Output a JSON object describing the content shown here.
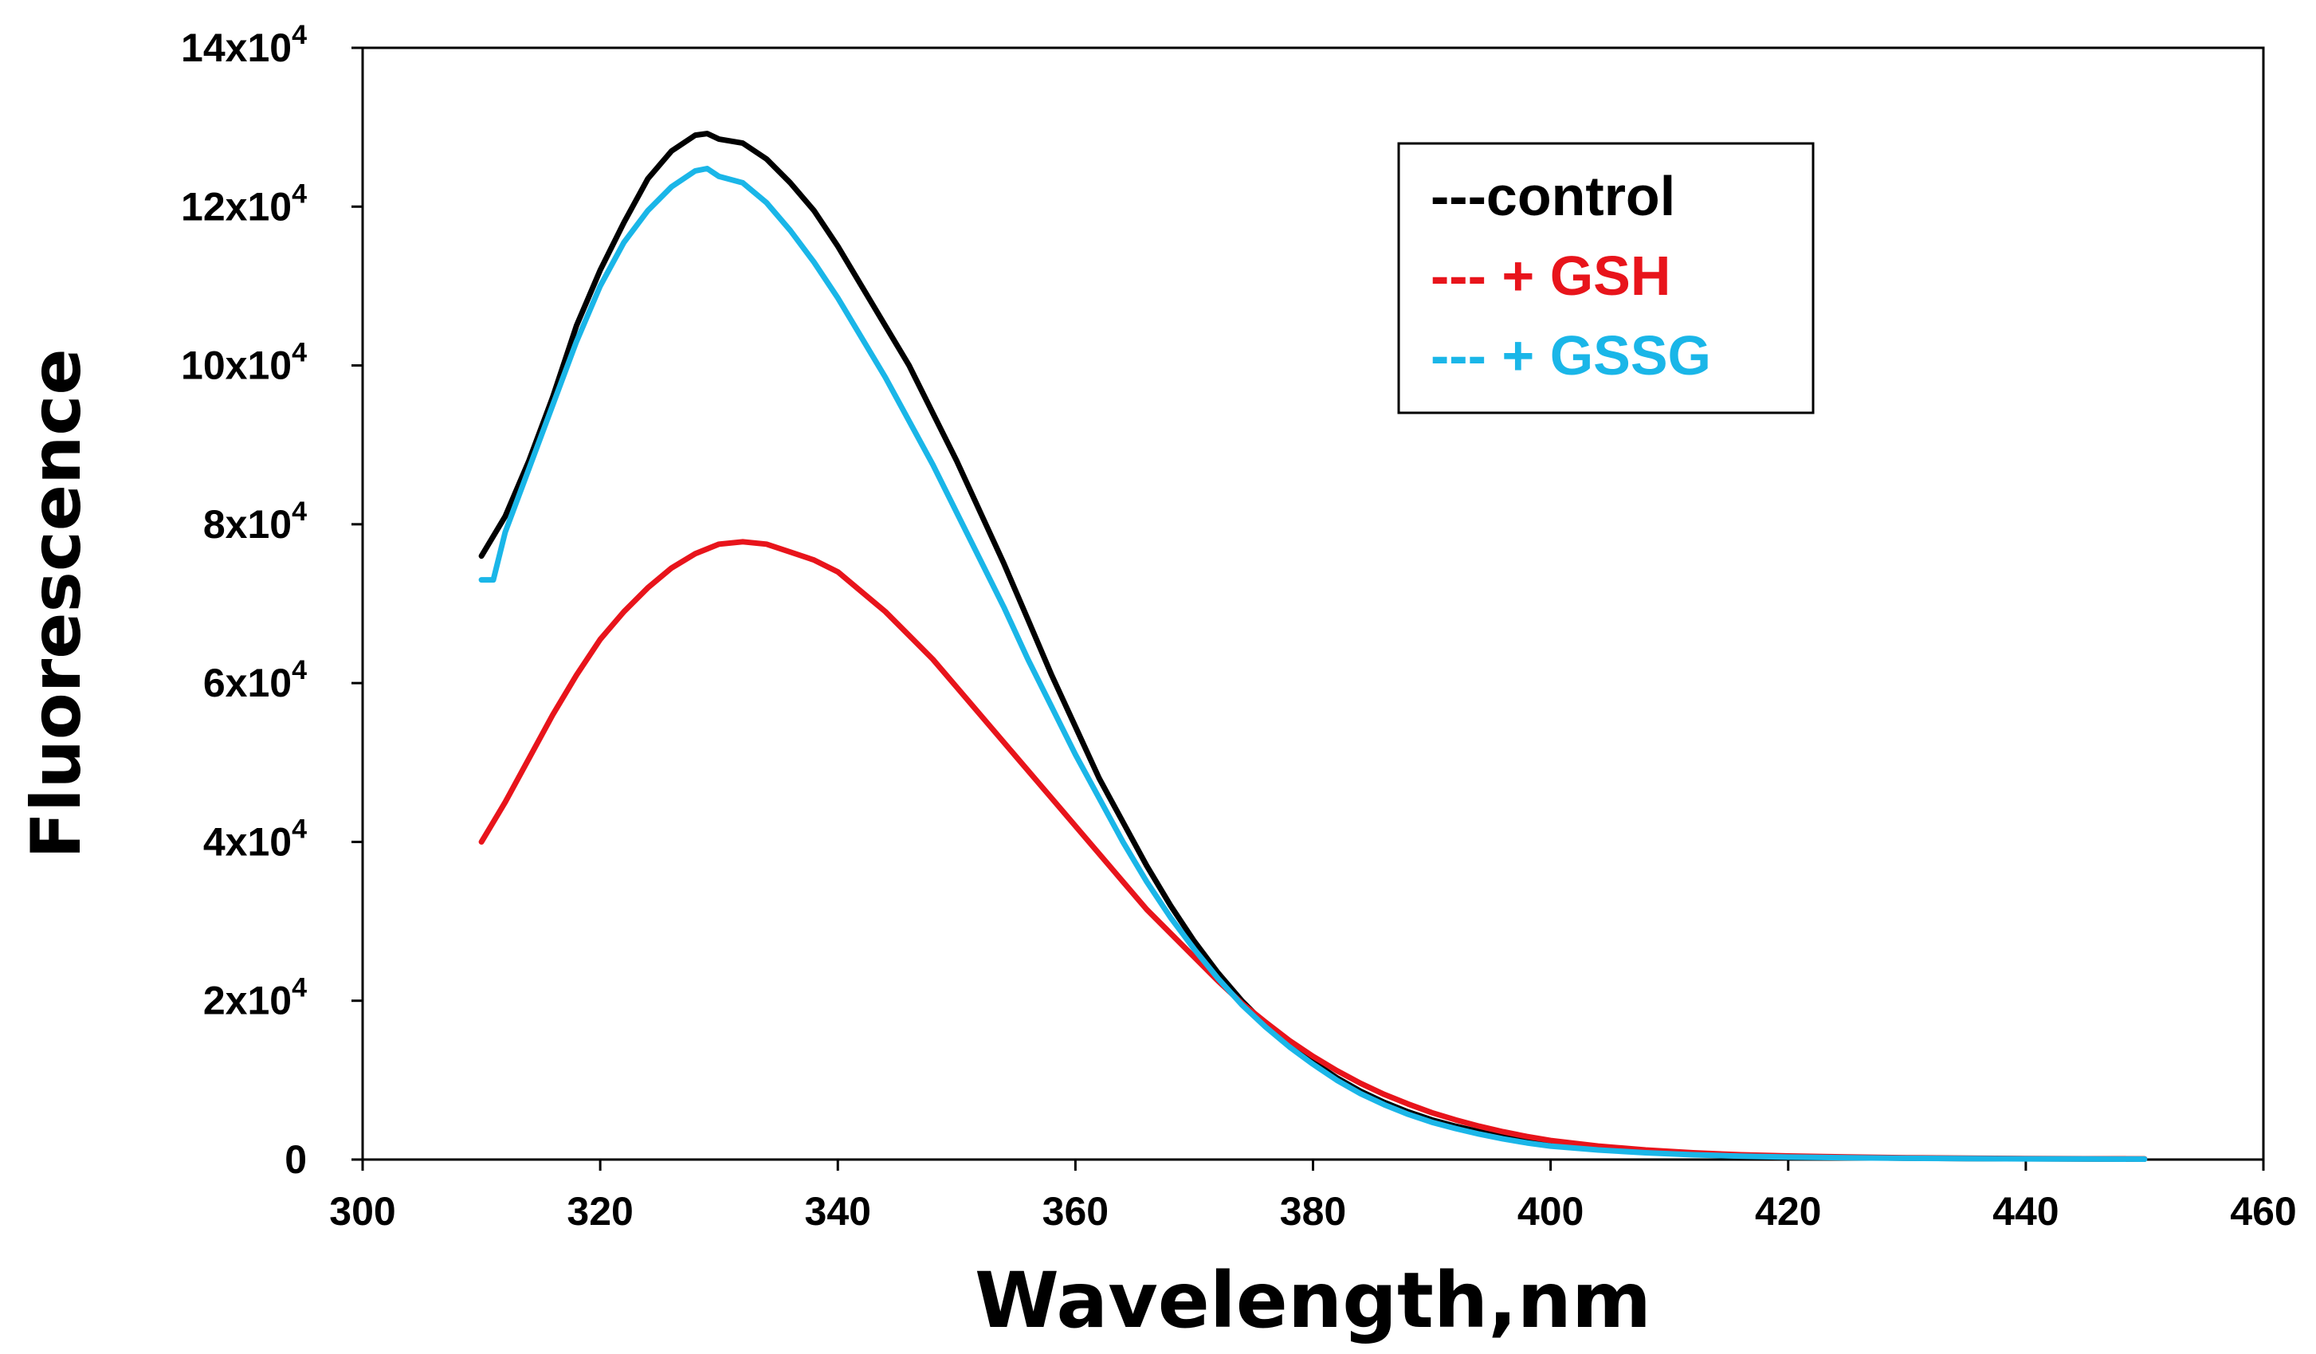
{
  "chart_data": {
    "type": "line",
    "title": "",
    "xlabel": "Wavelength,nm",
    "ylabel": "Fluorescence",
    "xlim": [
      300,
      460
    ],
    "ylim": [
      0,
      140000
    ],
    "grid": false,
    "legend_position": "top-right",
    "x_ticks": [
      300,
      320,
      340,
      360,
      380,
      400,
      420,
      440,
      460
    ],
    "x_tick_labels": [
      "300",
      "320",
      "340",
      "360",
      "380",
      "400",
      "420",
      "440",
      "460"
    ],
    "y_ticks": [
      0,
      20000,
      40000,
      60000,
      80000,
      100000,
      120000,
      140000
    ],
    "y_tick_labels": [
      {
        "base": "0",
        "exp": ""
      },
      {
        "base": "2x10",
        "exp": "4"
      },
      {
        "base": "4x10",
        "exp": "4"
      },
      {
        "base": "6x10",
        "exp": "4"
      },
      {
        "base": "8x10",
        "exp": "4"
      },
      {
        "base": "10x10",
        "exp": "4"
      },
      {
        "base": "12x10",
        "exp": "4"
      },
      {
        "base": "14x10",
        "exp": "4"
      }
    ],
    "series": [
      {
        "name": "control",
        "legend_label": "---control",
        "color": "#000000",
        "x": [
          310,
          312,
          314,
          316,
          318,
          320,
          322,
          324,
          326,
          328,
          329,
          330,
          332,
          334,
          336,
          338,
          340,
          342,
          344,
          346,
          348,
          350,
          352,
          354,
          356,
          358,
          360,
          362,
          364,
          366,
          368,
          370,
          372,
          374,
          376,
          378,
          380,
          382,
          384,
          386,
          388,
          390,
          392,
          394,
          396,
          398,
          400,
          404,
          408,
          412,
          416,
          420,
          425,
          430,
          435,
          440,
          445,
          450
        ],
        "y": [
          76000,
          81000,
          88000,
          96000,
          105000,
          112000,
          118000,
          123500,
          127000,
          129000,
          129200,
          128500,
          128000,
          126000,
          123000,
          119500,
          115000,
          110000,
          105000,
          100000,
          94000,
          88000,
          81500,
          75000,
          68000,
          61000,
          54500,
          48000,
          42500,
          37000,
          32000,
          27500,
          23500,
          20000,
          17000,
          14500,
          12300,
          10300,
          8600,
          7200,
          6000,
          5000,
          4200,
          3500,
          2900,
          2400,
          2000,
          1400,
          1000,
          700,
          500,
          350,
          250,
          180,
          130,
          100,
          80,
          60
        ]
      },
      {
        "name": "+ GSH",
        "legend_label": "--- + GSH",
        "color": "#e8141b",
        "x": [
          310,
          312,
          314,
          316,
          318,
          320,
          322,
          324,
          326,
          328,
          330,
          332,
          334,
          336,
          338,
          340,
          342,
          344,
          346,
          348,
          350,
          352,
          354,
          356,
          358,
          360,
          362,
          364,
          366,
          368,
          370,
          372,
          374,
          376,
          378,
          380,
          382,
          384,
          386,
          388,
          390,
          392,
          394,
          396,
          398,
          400,
          404,
          408,
          412,
          416,
          420,
          425,
          430,
          435,
          440,
          445,
          450
        ],
        "y": [
          40000,
          45000,
          50500,
          56000,
          61000,
          65500,
          69000,
          72000,
          74500,
          76300,
          77500,
          77800,
          77500,
          76500,
          75500,
          74000,
          71500,
          69000,
          66000,
          63000,
          59500,
          56000,
          52500,
          49000,
          45500,
          42000,
          38500,
          35000,
          31500,
          28500,
          25500,
          22500,
          19700,
          17300,
          15000,
          13000,
          11200,
          9600,
          8200,
          7000,
          5900,
          5000,
          4200,
          3500,
          2900,
          2400,
          1700,
          1200,
          850,
          600,
          450,
          320,
          230,
          170,
          130,
          100,
          80
        ]
      },
      {
        "name": "+ GSSG",
        "legend_label": "--- + GSSG",
        "color": "#1ab6e8",
        "x": [
          310,
          311,
          312,
          314,
          316,
          318,
          320,
          322,
          324,
          326,
          328,
          329,
          330,
          332,
          334,
          336,
          338,
          340,
          342,
          344,
          346,
          348,
          350,
          352,
          354,
          356,
          358,
          360,
          362,
          364,
          366,
          368,
          370,
          372,
          374,
          376,
          378,
          380,
          382,
          384,
          386,
          388,
          390,
          392,
          394,
          396,
          398,
          400,
          404,
          408,
          412,
          416,
          420,
          425,
          430,
          435,
          440,
          445,
          450
        ],
        "y": [
          73000,
          73000,
          79000,
          87000,
          95000,
          103000,
          110000,
          115500,
          119500,
          122500,
          124500,
          124800,
          123800,
          123000,
          120500,
          117000,
          113000,
          108500,
          103500,
          98500,
          93000,
          87500,
          81500,
          75500,
          69500,
          63000,
          57000,
          51000,
          45500,
          40000,
          35000,
          30500,
          26500,
          22800,
          19500,
          16700,
          14200,
          12000,
          10000,
          8300,
          6900,
          5700,
          4700,
          3900,
          3200,
          2600,
          2100,
          1700,
          1200,
          850,
          600,
          430,
          310,
          220,
          160,
          120,
          90,
          70,
          50
        ]
      }
    ]
  }
}
